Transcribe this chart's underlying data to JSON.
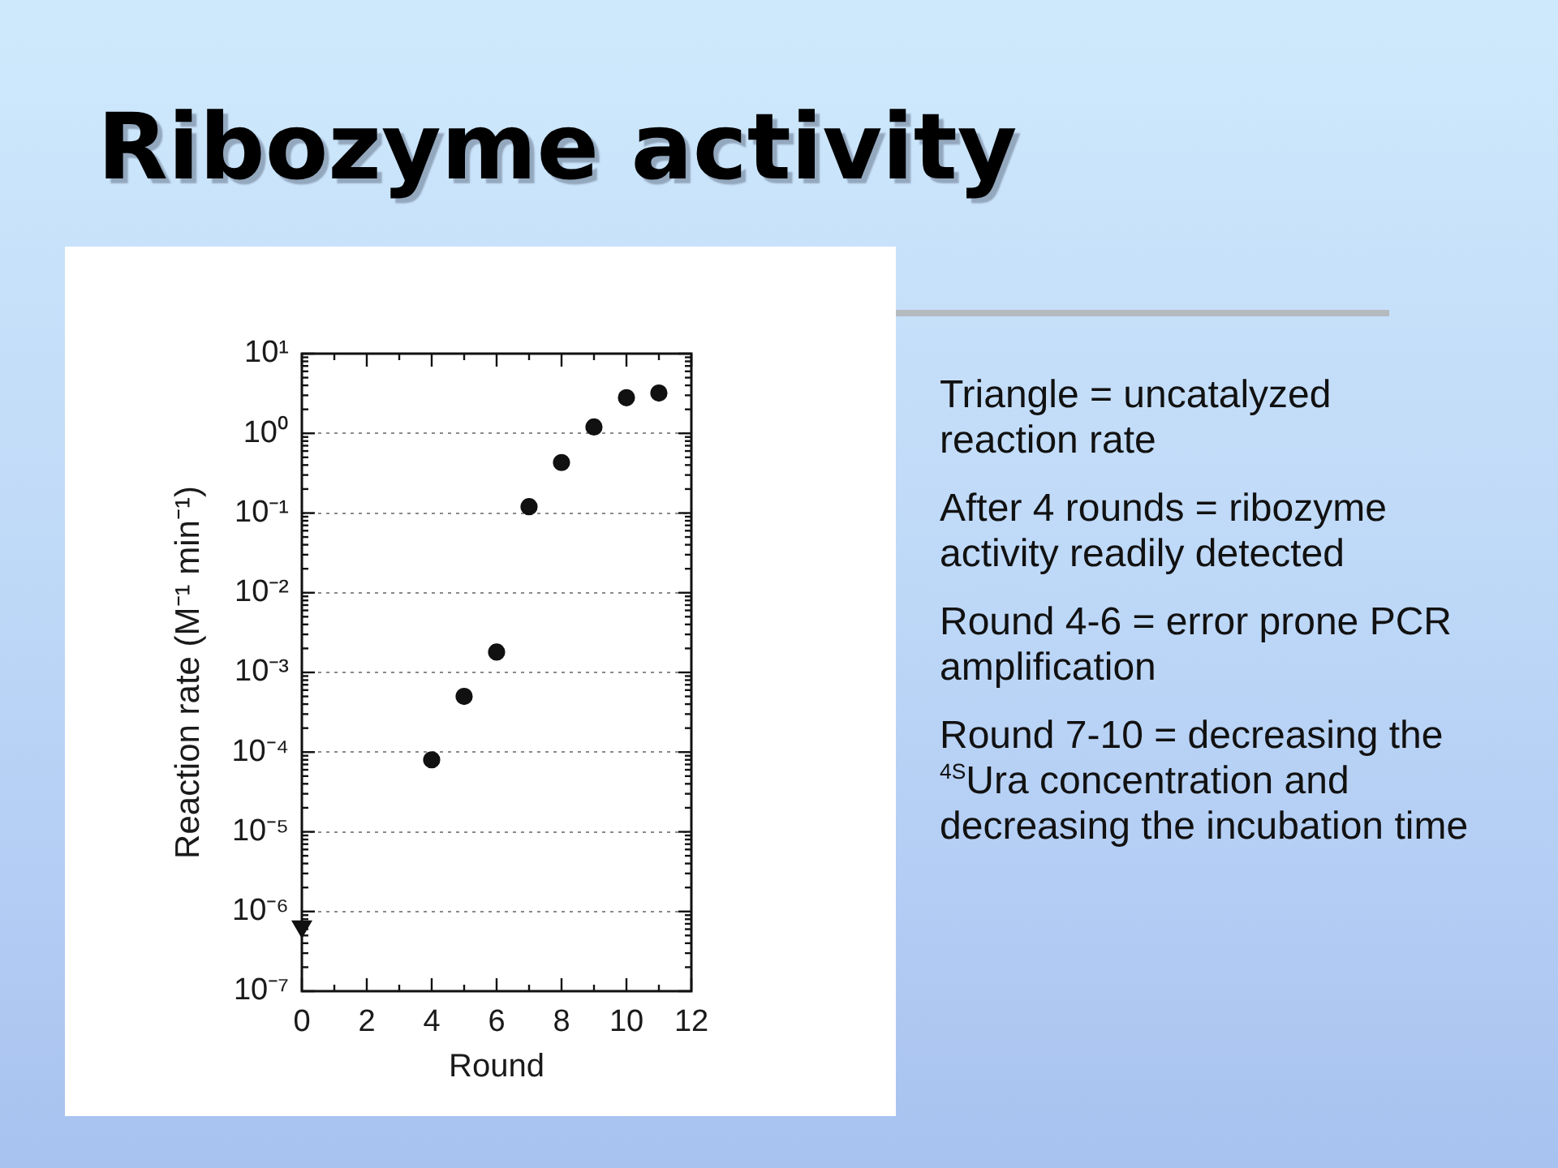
{
  "chart_data": {
    "type": "scatter",
    "title": "Ribozyme activity",
    "xlabel": "Round",
    "ylabel": "Reaction rate (M⁻¹ min⁻¹)",
    "series": [
      {
        "x": [
          0
        ],
        "values": [
          6.5e-07
        ],
        "color": "#111111",
        "marker": "triangle"
      },
      {
        "x": [
          4,
          5,
          6,
          7,
          8,
          9,
          10,
          11
        ],
        "values": [
          8e-05,
          0.0005,
          0.0018,
          0.12,
          0.43,
          1.2,
          2.8,
          3.2
        ],
        "color": "#111111"
      }
    ],
    "marker": "circle",
    "log": "y",
    "grid": "y",
    "xlim": [
      0,
      12
    ],
    "xticks": [
      0,
      {
        "value": 1,
        "label": null
      },
      2,
      {
        "value": 3,
        "label": null
      },
      4,
      {
        "value": 5,
        "label": null
      },
      6,
      {
        "value": 7,
        "label": null
      },
      8,
      {
        "value": 9,
        "label": null
      },
      10,
      {
        "value": 11,
        "label": null
      },
      12
    ],
    "ylim": [
      1e-07,
      10
    ],
    "yticks": [
      {
        "value": 1e-07,
        "label": "10⁻⁷"
      },
      {
        "value": 2e-07,
        "label": null
      },
      {
        "value": 3e-07,
        "label": null
      },
      {
        "value": 4e-07,
        "label": null
      },
      {
        "value": 5e-07,
        "label": null
      },
      {
        "value": 6e-07,
        "label": null
      },
      {
        "value": 7e-07,
        "label": null
      },
      {
        "value": 8e-07,
        "label": null
      },
      {
        "value": 9e-07,
        "label": null
      },
      {
        "value": 1e-06,
        "label": "10⁻⁶"
      },
      {
        "value": 2e-06,
        "label": null
      },
      {
        "value": 3e-06,
        "label": null
      },
      {
        "value": 4e-06,
        "label": null
      },
      {
        "value": 5e-06,
        "label": null
      },
      {
        "value": 6e-06,
        "label": null
      },
      {
        "value": 7e-06,
        "label": null
      },
      {
        "value": 8e-06,
        "label": null
      },
      {
        "value": 9e-06,
        "label": null
      },
      {
        "value": 1e-05,
        "label": "10⁻⁵"
      },
      {
        "value": 2e-05,
        "label": null
      },
      {
        "value": 3e-05,
        "label": null
      },
      {
        "value": 4e-05,
        "label": null
      },
      {
        "value": 5e-05,
        "label": null
      },
      {
        "value": 6e-05,
        "label": null
      },
      {
        "value": 7e-05,
        "label": null
      },
      {
        "value": 8e-05,
        "label": null
      },
      {
        "value": 9e-05,
        "label": null
      },
      {
        "value": 0.0001,
        "label": "10⁻⁴"
      },
      {
        "value": 0.0002,
        "label": null
      },
      {
        "value": 0.0003,
        "label": null
      },
      {
        "value": 0.0004,
        "label": null
      },
      {
        "value": 0.0005,
        "label": null
      },
      {
        "value": 0.0006,
        "label": null
      },
      {
        "value": 0.0007,
        "label": null
      },
      {
        "value": 0.0008,
        "label": null
      },
      {
        "value": 0.0009,
        "label": null
      },
      {
        "value": 0.001,
        "label": "10⁻³"
      },
      {
        "value": 0.002,
        "label": null
      },
      {
        "value": 0.003,
        "label": null
      },
      {
        "value": 0.004,
        "label": null
      },
      {
        "value": 0.005,
        "label": null
      },
      {
        "value": 0.006,
        "label": null
      },
      {
        "value": 0.007,
        "label": null
      },
      {
        "value": 0.008,
        "label": null
      },
      {
        "value": 0.009,
        "label": null
      },
      {
        "value": 0.01,
        "label": "10⁻²"
      },
      {
        "value": 0.02,
        "label": null
      },
      {
        "value": 0.03,
        "label": null
      },
      {
        "value": 0.04,
        "label": null
      },
      {
        "value": 0.05,
        "label": null
      },
      {
        "value": 0.06,
        "label": null
      },
      {
        "value": 0.07,
        "label": null
      },
      {
        "value": 0.08,
        "label": null
      },
      {
        "value": 0.09,
        "label": null
      },
      {
        "value": 0.1,
        "label": "10⁻¹"
      },
      {
        "value": 0.2,
        "label": null
      },
      {
        "value": 0.3,
        "label": null
      },
      {
        "value": 0.4,
        "label": null
      },
      {
        "value": 0.5,
        "label": null
      },
      {
        "value": 0.6,
        "label": null
      },
      {
        "value": 0.7,
        "label": null
      },
      {
        "value": 0.8,
        "label": null
      },
      {
        "value": 0.9,
        "label": null
      },
      {
        "value": 1,
        "label": "10⁰"
      },
      {
        "value": 2,
        "label": null
      },
      {
        "value": 3,
        "label": null
      },
      {
        "value": 4,
        "label": null
      },
      {
        "value": 5,
        "label": null
      },
      {
        "value": 6,
        "label": null
      },
      {
        "value": 7,
        "label": null
      },
      {
        "value": 8,
        "label": null
      },
      {
        "value": 9,
        "label": null
      },
      {
        "value": 10,
        "label": "10¹"
      }
    ],
    "annotations": [
      "Triangle = uncatalyzed reaction rate",
      "After 4 rounds = ribozyme activity readily detected",
      "Round 4-6 = error prone PCR amplification",
      "Round 7-10 = decreasing the $^{4S}$Ura concentration and decreasing the incubation time"
    ]
  }
}
